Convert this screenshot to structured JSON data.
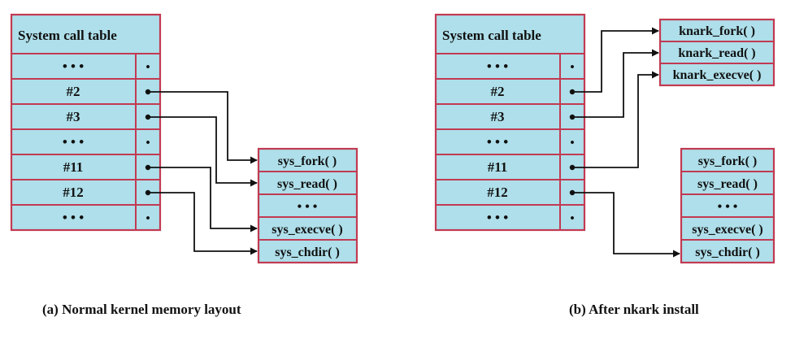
{
  "colors": {
    "cell_fill": "#aedfea",
    "cell_border": "#c23a52",
    "line": "#111111"
  },
  "panel_a": {
    "caption": "(a) Normal kernel memory layout",
    "table_title": "System call table",
    "rows": [
      "• • •",
      "#2",
      "#3",
      "• • •",
      "#11",
      "#12",
      "• • •"
    ],
    "pointer_symbol": "•",
    "targets": [
      "sys_fork( )",
      "sys_read( )",
      "• • •",
      "sys_execve( )",
      "sys_chdir( )"
    ]
  },
  "panel_b": {
    "caption": "(b) After nkark install",
    "table_title": "System call table",
    "rows": [
      "• • •",
      "#2",
      "#3",
      "• • •",
      "#11",
      "#12",
      "• • •"
    ],
    "pointer_symbol": "•",
    "knark_targets": [
      "knark_fork( )",
      "knark_read( )",
      "knark_execve( )"
    ],
    "targets": [
      "sys_fork( )",
      "sys_read( )",
      "• • •",
      "sys_execve( )",
      "sys_chdir( )"
    ]
  }
}
